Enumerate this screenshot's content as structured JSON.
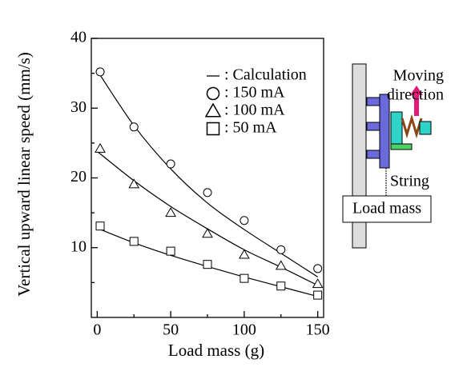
{
  "chart_data": {
    "type": "scatter",
    "x_label": "Load mass (g)",
    "y_label": "Vertical upward linear speed (mm/s)",
    "xlim": [
      -4,
      154
    ],
    "xticks": [
      0,
      50,
      100,
      150
    ],
    "xminor": [
      25,
      75,
      125
    ],
    "ylim": [
      0,
      40
    ],
    "yticks": [
      10,
      20,
      30,
      40
    ],
    "yminor": [
      5,
      15,
      25,
      35
    ],
    "x": [
      2,
      25,
      50,
      75,
      100,
      125,
      150
    ],
    "series": [
      {
        "name": ": 150 mA",
        "marker": "circle",
        "color": "#000000",
        "values": [
          35.2,
          27.3,
          22.0,
          17.9,
          13.9,
          9.7,
          7.0
        ]
      },
      {
        "name": ": 100 mA",
        "marker": "triangle",
        "color": "#000000",
        "values": [
          24.2,
          19.1,
          15.0,
          12.0,
          9.0,
          7.4,
          4.8
        ]
      },
      {
        "name": ": 50 mA",
        "marker": "square",
        "color": "#000000",
        "values": [
          13.1,
          10.9,
          9.5,
          7.6,
          5.6,
          4.5,
          3.2
        ]
      }
    ],
    "calculation": {
      "name": ": Calculation",
      "color": "#000000",
      "x": [
        0,
        25,
        50,
        75,
        100,
        125,
        150
      ],
      "curves": [
        [
          35.4,
          27.5,
          21.3,
          16.4,
          12.6,
          9.2,
          5.8
        ],
        [
          23.8,
          19.6,
          15.9,
          12.7,
          9.7,
          7.2,
          4.6
        ],
        [
          12.8,
          10.7,
          8.9,
          7.3,
          5.8,
          4.4,
          3.0
        ]
      ]
    },
    "inset": {
      "moving_1": "Moving",
      "moving_2": "direction",
      "string": "String",
      "load": "Load mass"
    }
  }
}
